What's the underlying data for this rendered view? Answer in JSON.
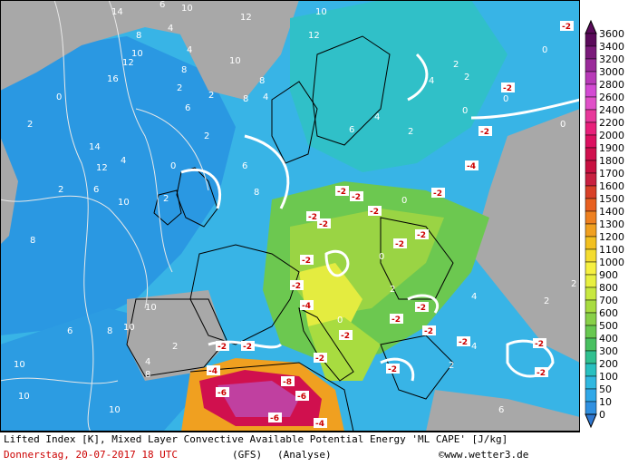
{
  "map": {
    "legend": {
      "levels": [
        "3600",
        "3400",
        "3200",
        "3000",
        "2800",
        "2600",
        "2400",
        "2200",
        "2000",
        "1900",
        "1800",
        "1700",
        "1600",
        "1500",
        "1400",
        "1300",
        "1200",
        "1100",
        "1000",
        "900",
        "800",
        "700",
        "600",
        "500",
        "400",
        "300",
        "200",
        "100",
        "50",
        "10",
        "0"
      ],
      "colors": [
        "#5a0a5a",
        "#7a1a7a",
        "#9a2a9a",
        "#b83ab8",
        "#d34ad3",
        "#e050c8",
        "#e8389a",
        "#e8207a",
        "#dc1060",
        "#d0104e",
        "#c81040",
        "#c82040",
        "#d84028",
        "#e86020",
        "#ee8020",
        "#f0a020",
        "#f2c020",
        "#f4dc30",
        "#f6f040",
        "#e8f040",
        "#c8e840",
        "#a8dc40",
        "#88d048",
        "#68c850",
        "#48c060",
        "#30c090",
        "#28c0c0",
        "#30b8e0",
        "#30a8e8",
        "#3090e0",
        "#3078d0"
      ]
    },
    "lifted_index_labels": [
      {
        "t": "14"
      },
      {
        "t": "10"
      },
      {
        "t": "12"
      },
      {
        "t": "10"
      },
      {
        "t": "12"
      },
      {
        "t": "8"
      },
      {
        "t": "6"
      },
      {
        "t": "4"
      },
      {
        "t": "16"
      },
      {
        "t": "12"
      },
      {
        "t": "10"
      },
      {
        "t": "4"
      },
      {
        "t": "8"
      },
      {
        "t": "2"
      },
      {
        "t": "14"
      },
      {
        "t": "12"
      },
      {
        "t": "6"
      },
      {
        "t": "2"
      },
      {
        "t": "10"
      },
      {
        "t": "8"
      },
      {
        "t": "4"
      },
      {
        "t": "8"
      },
      {
        "t": "2"
      },
      {
        "t": "6"
      },
      {
        "t": "4"
      },
      {
        "t": "8"
      },
      {
        "t": "6"
      },
      {
        "t": "2"
      },
      {
        "t": "0"
      },
      {
        "t": "2"
      },
      {
        "t": "8"
      },
      {
        "t": "10"
      },
      {
        "t": "10"
      },
      {
        "t": "8"
      },
      {
        "t": "10"
      },
      {
        "t": "6"
      },
      {
        "t": "4"
      },
      {
        "t": "2"
      },
      {
        "t": "0"
      },
      {
        "t": "0"
      },
      {
        "t": "2"
      },
      {
        "t": "0"
      },
      {
        "t": "2"
      },
      {
        "t": "0"
      },
      {
        "t": "2"
      },
      {
        "t": "4"
      },
      {
        "t": "4"
      },
      {
        "t": "6"
      },
      {
        "t": "0"
      },
      {
        "t": "0"
      },
      {
        "t": "2"
      },
      {
        "t": "0"
      },
      {
        "t": "2"
      },
      {
        "t": "2"
      },
      {
        "t": "4"
      },
      {
        "t": "10"
      },
      {
        "t": "10"
      },
      {
        "t": "10"
      },
      {
        "t": "8"
      },
      {
        "t": "6"
      },
      {
        "t": "2"
      },
      {
        "t": "4"
      },
      {
        "t": "2"
      },
      {
        "t": "0"
      }
    ],
    "negative_labels": [
      {
        "t": "-2"
      },
      {
        "t": "-2"
      },
      {
        "t": "-2"
      },
      {
        "t": "-4"
      },
      {
        "t": "-2"
      },
      {
        "t": "-2"
      },
      {
        "t": "-2"
      },
      {
        "t": "-2"
      },
      {
        "t": "-2"
      },
      {
        "t": "-2"
      },
      {
        "t": "-2"
      },
      {
        "t": "-2"
      },
      {
        "t": "-2"
      },
      {
        "t": "-4"
      },
      {
        "t": "-2"
      },
      {
        "t": "-2"
      },
      {
        "t": "-2"
      },
      {
        "t": "-2"
      },
      {
        "t": "-2"
      },
      {
        "t": "-2"
      },
      {
        "t": "-4"
      },
      {
        "t": "-2"
      },
      {
        "t": "-2"
      },
      {
        "t": "-6"
      },
      {
        "t": "-8"
      },
      {
        "t": "-6"
      },
      {
        "t": "-6"
      },
      {
        "t": "-4"
      },
      {
        "t": "-2"
      },
      {
        "t": "-2"
      },
      {
        "t": "-2"
      },
      {
        "t": "-2"
      }
    ]
  },
  "footer": {
    "line1": "Lifted Index [K], Mixed Layer Convective Available Potential Energy 'ML CAPE' [J/kg]",
    "date": "Donnerstag, 20-07-2017  18 UTC",
    "model": "(GFS)",
    "analysis": "(Analyse)",
    "copyright": "©www.wetter3.de"
  }
}
